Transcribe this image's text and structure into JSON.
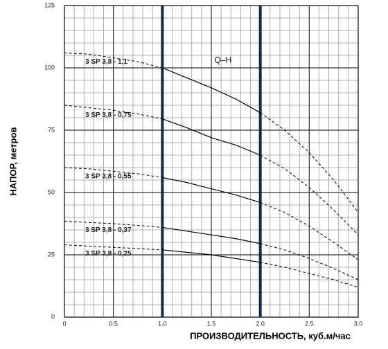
{
  "chart_data": {
    "type": "line",
    "y_label": "НАПОР, метров",
    "x_label": "ПРОИЗВОДИТЕЛЬНОСТЬ, куб.м/час",
    "annotation": "Q–H",
    "x": [
      0,
      0.25,
      0.5,
      0.75,
      1,
      1.25,
      1.5,
      1.75,
      2,
      2.25,
      2.5,
      2.75,
      3
    ],
    "series": [
      {
        "name": "3 SP 3,8 - 1,1",
        "color": "#000000",
        "values": [
          106,
          105.5,
          104,
          102.5,
          100,
          96,
          92,
          87.5,
          82,
          75,
          66,
          55,
          42
        ]
      },
      {
        "name": "3 SP 3,8 - 0,75",
        "color": "#000000",
        "values": [
          85,
          84,
          83,
          81.5,
          79.5,
          76,
          72,
          69,
          65,
          59.5,
          52,
          43,
          33
        ]
      },
      {
        "name": "3 SP 3,8 - 0,55",
        "color": "#000000",
        "values": [
          60,
          59.5,
          58.5,
          57.5,
          56,
          54,
          51.5,
          49,
          46,
          42,
          36.5,
          30,
          23
        ]
      },
      {
        "name": "3 SP 3,8 - 0,37",
        "color": "#000000",
        "values": [
          38.5,
          38,
          37.5,
          36.8,
          36,
          34.5,
          33,
          31.5,
          29.5,
          27,
          23.5,
          19.5,
          15
        ]
      },
      {
        "name": "3 SP 3,8 - 0,25",
        "color": "#000000",
        "values": [
          29,
          28.5,
          28,
          27.5,
          27,
          26,
          25,
          23.5,
          22,
          20,
          17.5,
          15,
          12
        ]
      }
    ],
    "operating_range": [
      1,
      2
    ],
    "xlim": [
      0,
      3
    ],
    "ylim": [
      0,
      125
    ],
    "xticks": [
      0,
      0.5,
      {
        "value": 1,
        "label": "1.0"
      },
      1.5,
      {
        "value": 2,
        "label": "2.0"
      },
      2.5,
      {
        "value": 3,
        "label": "3.0"
      }
    ],
    "yticks": [
      0,
      25,
      50,
      75,
      100,
      125
    ],
    "minor_grid": {
      "x": 0.1,
      "y": 5
    },
    "label_color": "#7a1f2b",
    "range_color": "#13294b"
  }
}
